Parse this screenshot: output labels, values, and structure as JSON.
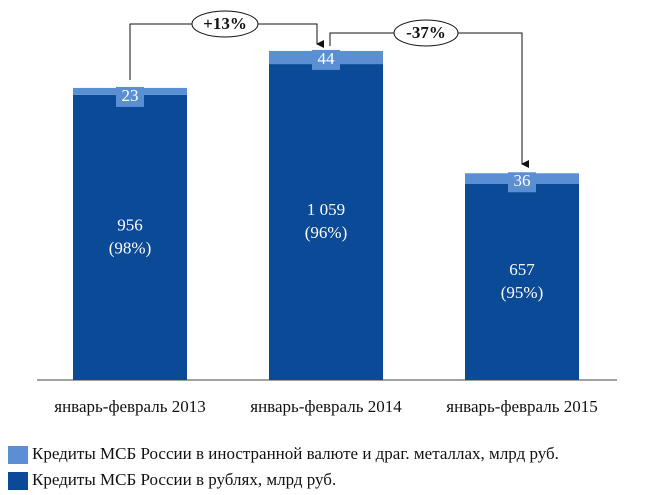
{
  "chart_data": {
    "type": "stacked-bar",
    "categories": [
      "январь-февраль 2013",
      "январь-февраль 2014",
      "январь-февраль 2015"
    ],
    "series": [
      {
        "name": "Кредиты МСБ России в рублях, млрд руб.",
        "color": "#0b4a97",
        "values": [
          956,
          1059,
          657
        ],
        "value_labels": [
          "956",
          "1 059",
          "657"
        ],
        "share_labels": [
          "(98%)",
          "(96%)",
          "(95%)"
        ]
      },
      {
        "name": "Кредиты МСБ России в иностранной валюте и драг. металлах, млрд руб.",
        "color": "#5b8fd3",
        "values": [
          23,
          44,
          36
        ]
      }
    ],
    "annotations": [
      "+13%",
      "-37%"
    ],
    "ylim": [
      0,
      1200
    ]
  }
}
